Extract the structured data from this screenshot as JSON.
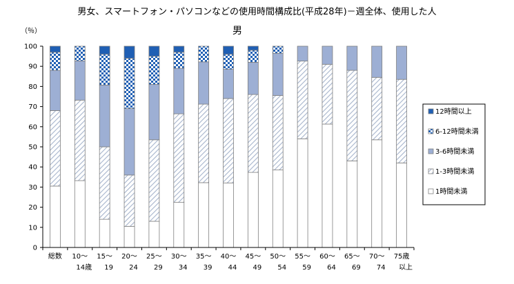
{
  "title": "男女、スマートフォン・パソコンなどの使用時間構成比(平成28年)－週全体、使用した人",
  "chart_data": {
    "type": "bar",
    "stacked": true,
    "title": "男",
    "ylabel": "（％）",
    "ylim": [
      0,
      100
    ],
    "yticks": [
      0,
      10,
      20,
      30,
      40,
      50,
      60,
      70,
      80,
      90,
      100
    ],
    "grid": false,
    "legend_position": "right",
    "categories": [
      [
        "総数",
        ""
      ],
      [
        "10～",
        "14歳"
      ],
      [
        "15～",
        "19"
      ],
      [
        "20～",
        "24"
      ],
      [
        "25～",
        "29"
      ],
      [
        "30～",
        "34"
      ],
      [
        "35～",
        "39"
      ],
      [
        "40～",
        "44"
      ],
      [
        "45～",
        "49"
      ],
      [
        "50～",
        "54"
      ],
      [
        "55～",
        "59"
      ],
      [
        "60～",
        "64"
      ],
      [
        "65～",
        "69"
      ],
      [
        "70～",
        "74"
      ],
      [
        "75歳",
        "以上"
      ]
    ],
    "series": [
      {
        "name": "1時間未満",
        "pattern": "white",
        "values": [
          30.5,
          33.2,
          14.0,
          10.5,
          13.0,
          22.4,
          32.2,
          32.0,
          37.3,
          38.5,
          54.0,
          61.3,
          43.0,
          53.5,
          42.0
        ]
      },
      {
        "name": "1-3時間未満",
        "pattern": "hatch",
        "values": [
          37.5,
          40.0,
          36.0,
          25.5,
          40.5,
          44.0,
          39.0,
          42.0,
          38.7,
          37.0,
          38.6,
          29.7,
          45.0,
          31.0,
          41.5
        ]
      },
      {
        "name": "3-6時間未満",
        "pattern": "lightblue",
        "values": [
          20.0,
          19.5,
          30.7,
          33.0,
          27.5,
          22.6,
          21.0,
          14.5,
          16.0,
          21.0,
          7.4,
          9.0,
          12.0,
          15.5,
          16.5
        ]
      },
      {
        "name": "6-12時間未満",
        "pattern": "checker",
        "values": [
          9.0,
          7.3,
          15.3,
          25.0,
          14.0,
          8.0,
          7.8,
          7.5,
          6.0,
          3.5,
          0,
          0,
          0,
          0,
          0
        ]
      },
      {
        "name": "12時間以上",
        "pattern": "darkblue",
        "values": [
          3.0,
          0,
          4.0,
          6.0,
          5.0,
          3.0,
          0,
          4.0,
          2.0,
          0,
          0,
          0,
          0,
          0,
          0
        ]
      }
    ]
  },
  "colors": {
    "axis": "#000000",
    "border": "#7f7f7f",
    "white": "#ffffff",
    "hatch_line": "#a6b4cc",
    "lightblue": "#9dafd4",
    "checker_a": "#1f5fb4",
    "checker_b": "#ffffff",
    "darkblue": "#1f5fb4"
  }
}
